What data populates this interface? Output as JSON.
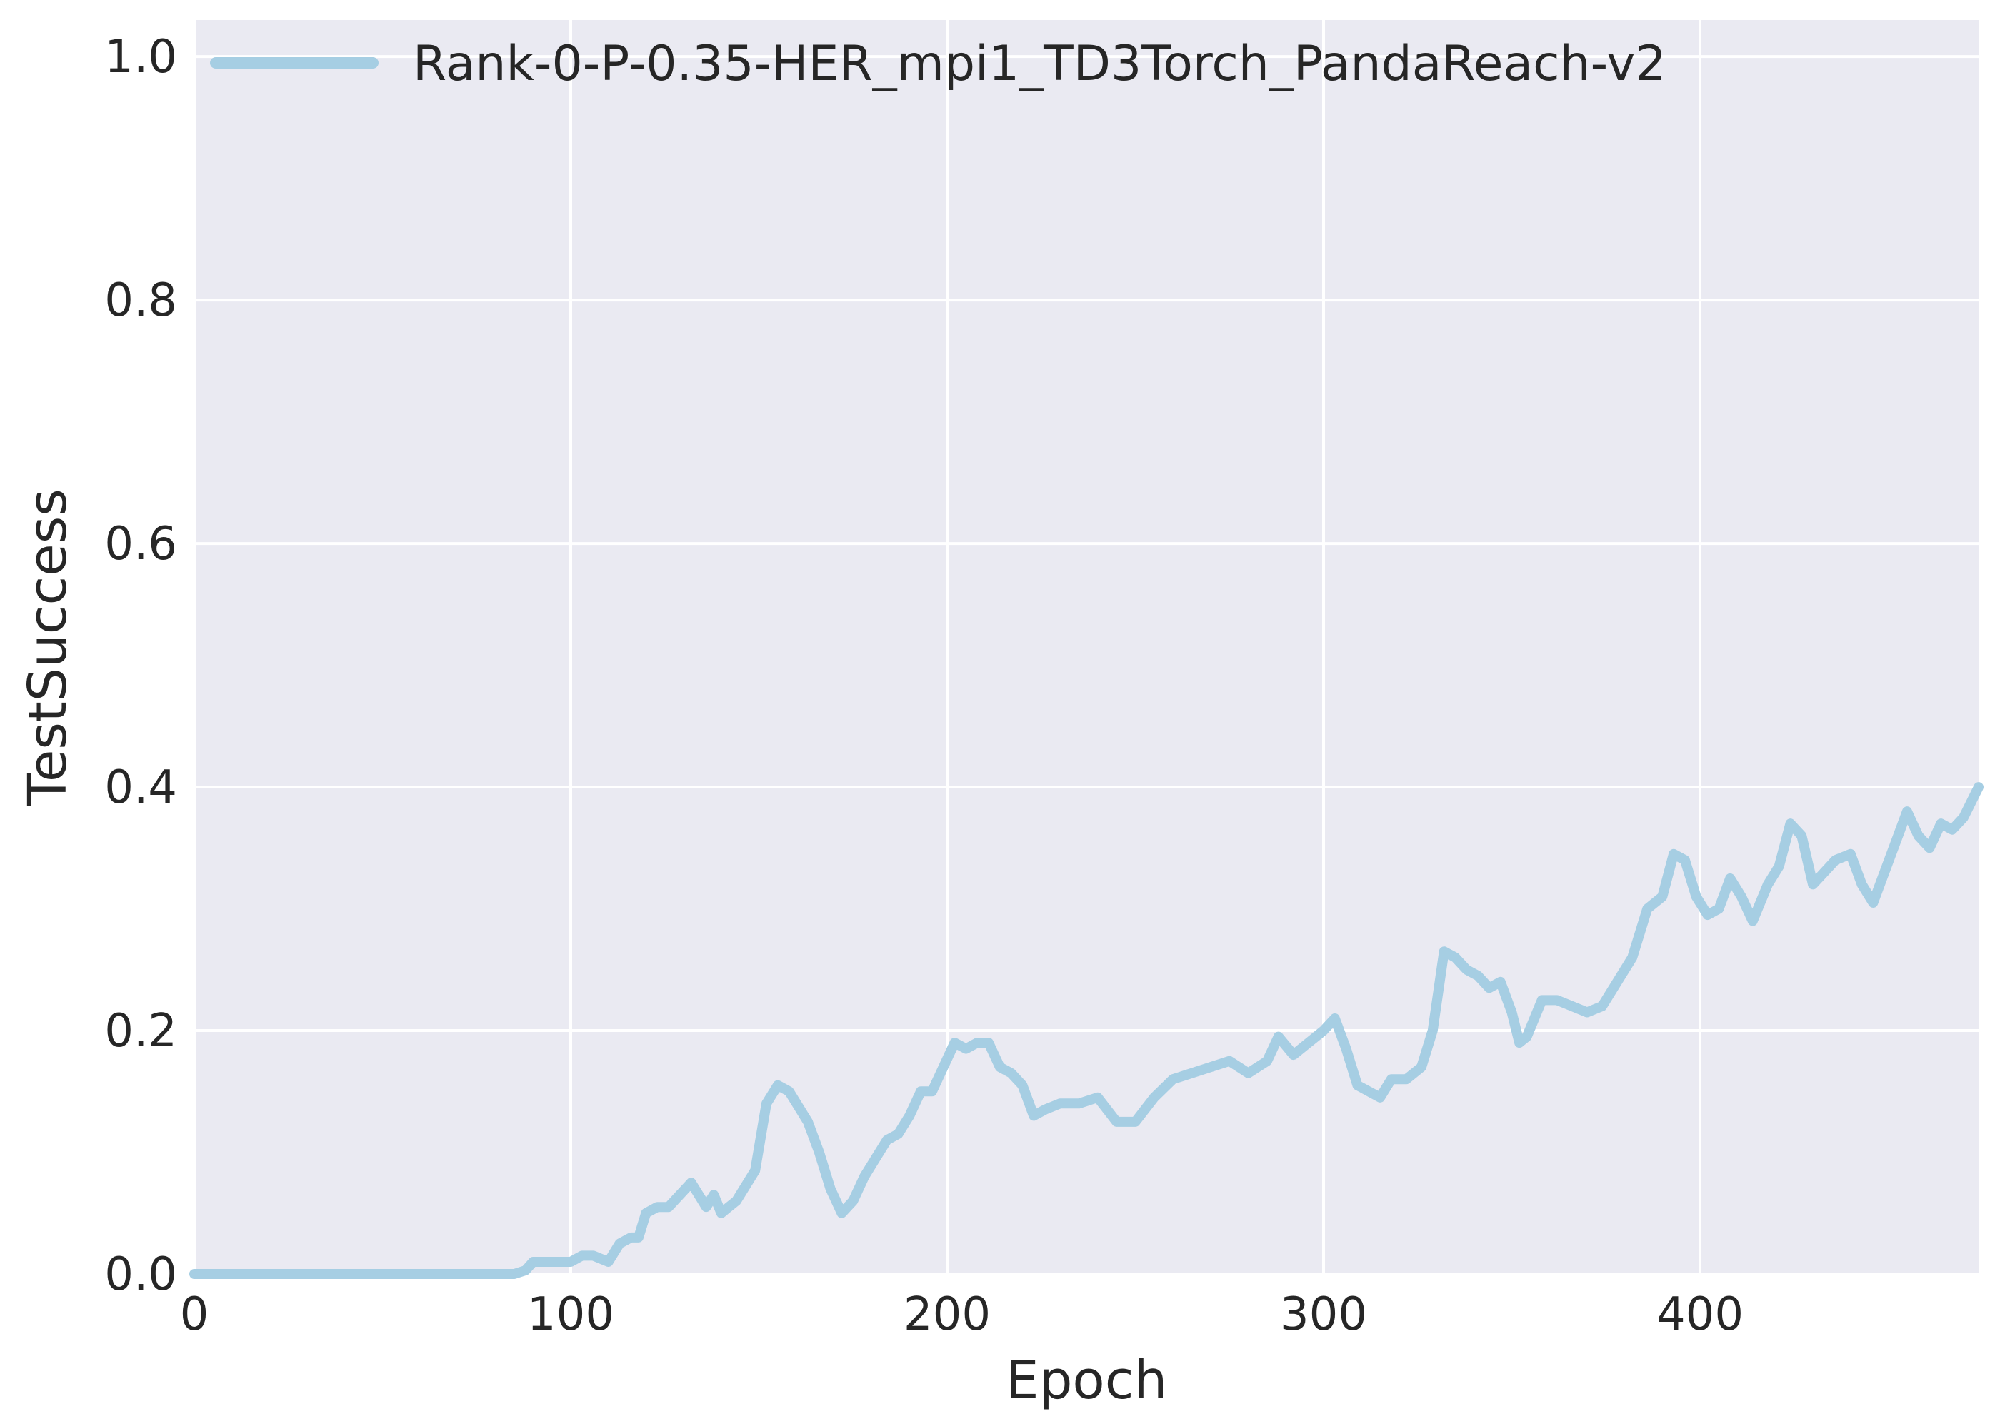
{
  "chart_data": {
    "type": "line",
    "xlabel": "Epoch",
    "ylabel": "TestSuccess",
    "xlim": [
      0,
      474
    ],
    "ylim": [
      0,
      1.03
    ],
    "xticks": [
      0,
      100,
      200,
      300,
      400
    ],
    "yticks": [
      0.0,
      0.2,
      0.4,
      0.6,
      0.8,
      1.0
    ],
    "xtick_labels": [
      "0",
      "100",
      "200",
      "300",
      "400"
    ],
    "ytick_labels": [
      "0.0",
      "0.2",
      "0.4",
      "0.6",
      "0.8",
      "1.0"
    ],
    "grid": true,
    "legend_position": "top-left",
    "background_color": "#eaeaf2",
    "grid_color": "#ffffff",
    "series": [
      {
        "name": "Rank-0-P-0.35-HER_mpi1_TD3Torch_PandaReach-v2",
        "color": "#a6cee3",
        "x": [
          0,
          85,
          88,
          90,
          95,
          100,
          103,
          106,
          110,
          113,
          116,
          118,
          120,
          123,
          126,
          129,
          132,
          134,
          136,
          138,
          140,
          142,
          144,
          146,
          149,
          152,
          155,
          158,
          160,
          163,
          166,
          169,
          172,
          175,
          178,
          181,
          184,
          187,
          190,
          193,
          196,
          199,
          202,
          205,
          208,
          211,
          214,
          217,
          220,
          223,
          226,
          230,
          235,
          240,
          245,
          250,
          255,
          260,
          265,
          270,
          275,
          280,
          285,
          288,
          292,
          296,
          300,
          303,
          306,
          309,
          312,
          315,
          318,
          322,
          326,
          329,
          332,
          335,
          338,
          341,
          344,
          347,
          350,
          352,
          354,
          358,
          362,
          366,
          370,
          374,
          378,
          382,
          386,
          390,
          393,
          396,
          399,
          402,
          405,
          408,
          411,
          414,
          418,
          421,
          424,
          427,
          430,
          433,
          436,
          440,
          443,
          446,
          449,
          452,
          455,
          458,
          461,
          464,
          467,
          470,
          474
        ],
        "y": [
          0.0,
          0.0,
          0.003,
          0.01,
          0.01,
          0.01,
          0.015,
          0.015,
          0.01,
          0.025,
          0.03,
          0.03,
          0.05,
          0.055,
          0.055,
          0.065,
          0.075,
          0.065,
          0.055,
          0.065,
          0.05,
          0.055,
          0.06,
          0.07,
          0.085,
          0.14,
          0.155,
          0.15,
          0.14,
          0.125,
          0.1,
          0.07,
          0.05,
          0.06,
          0.08,
          0.095,
          0.11,
          0.115,
          0.13,
          0.15,
          0.15,
          0.17,
          0.19,
          0.185,
          0.19,
          0.19,
          0.17,
          0.165,
          0.155,
          0.13,
          0.135,
          0.14,
          0.14,
          0.145,
          0.125,
          0.125,
          0.145,
          0.16,
          0.165,
          0.17,
          0.175,
          0.165,
          0.175,
          0.195,
          0.18,
          0.19,
          0.2,
          0.21,
          0.185,
          0.155,
          0.15,
          0.145,
          0.16,
          0.16,
          0.17,
          0.2,
          0.265,
          0.26,
          0.25,
          0.245,
          0.235,
          0.24,
          0.215,
          0.19,
          0.195,
          0.225,
          0.225,
          0.22,
          0.215,
          0.22,
          0.24,
          0.26,
          0.3,
          0.31,
          0.345,
          0.34,
          0.31,
          0.295,
          0.3,
          0.325,
          0.31,
          0.29,
          0.32,
          0.335,
          0.37,
          0.36,
          0.32,
          0.33,
          0.34,
          0.345,
          0.32,
          0.305,
          0.33,
          0.355,
          0.38,
          0.36,
          0.35,
          0.37,
          0.365,
          0.375,
          0.4
        ]
      }
    ]
  }
}
